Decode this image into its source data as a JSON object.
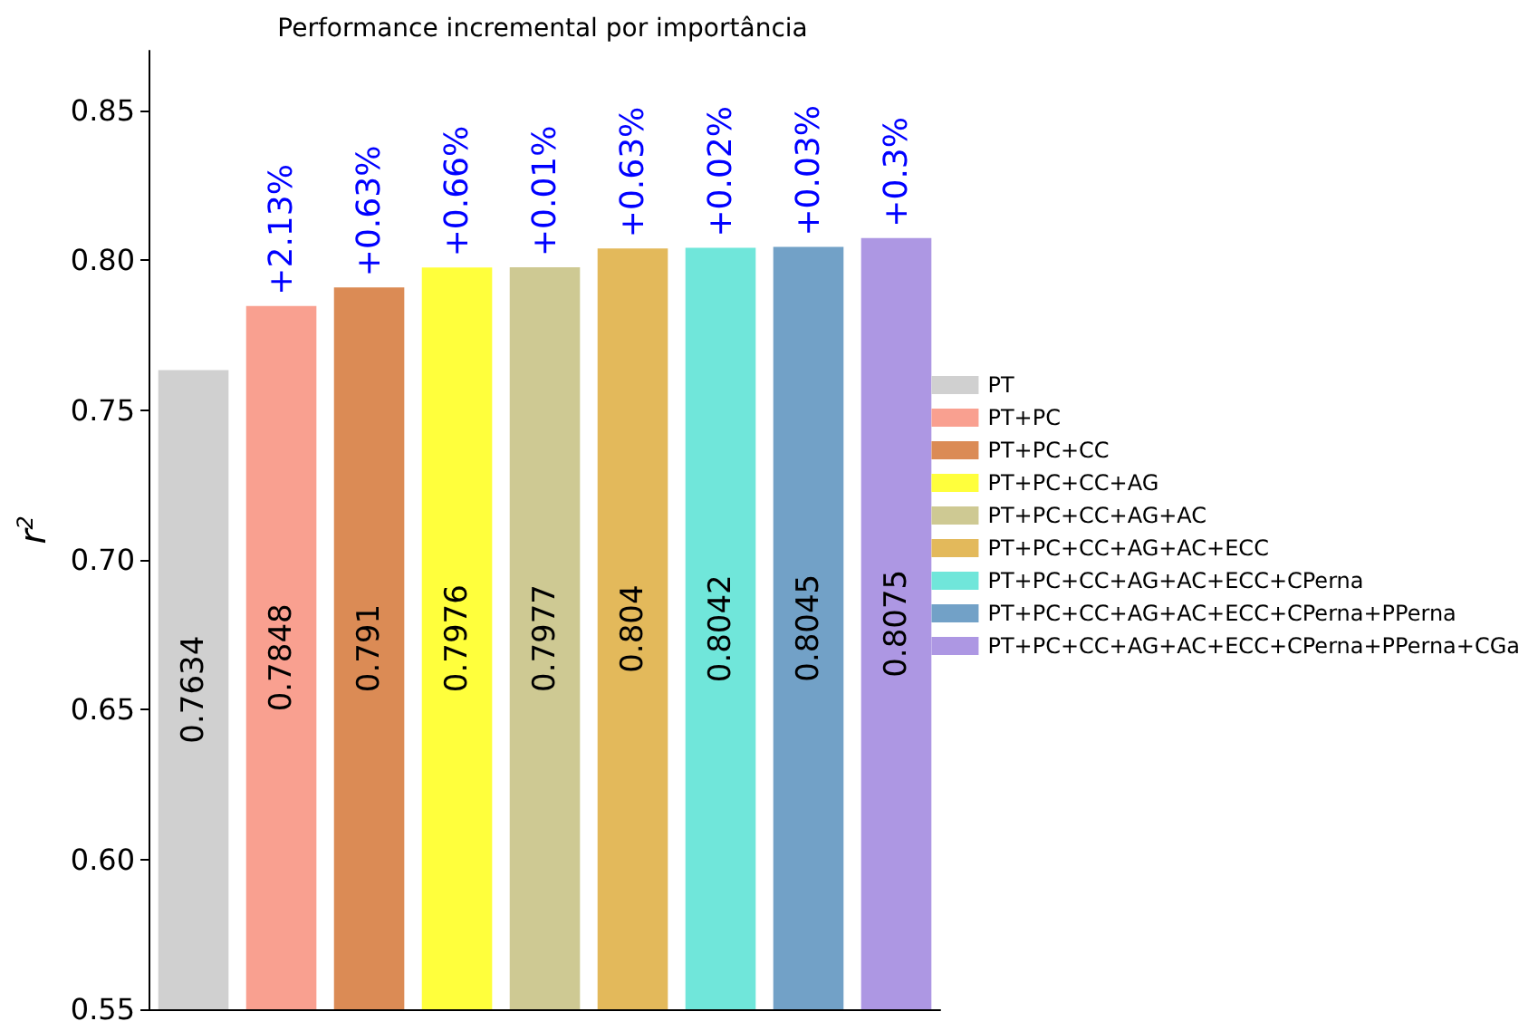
{
  "chart_data": {
    "type": "bar",
    "title": "Performance incremental por importância",
    "ylabel": "r$^{2}$",
    "categories": [
      null,
      null,
      null,
      null,
      null,
      null,
      null,
      null,
      null
    ],
    "series": [
      {
        "name": "PT",
        "color": "#d0d0d0",
        "values": [
          0.7634,
          null,
          null,
          null,
          null,
          null,
          null,
          null,
          null
        ]
      },
      {
        "name": "PT+PC",
        "color": "#f9a090",
        "values": [
          null,
          0.7848,
          null,
          null,
          null,
          null,
          null,
          null,
          null
        ]
      },
      {
        "name": "PT+PC+CC",
        "color": "#db8b55",
        "values": [
          null,
          null,
          0.791,
          null,
          null,
          null,
          null,
          null,
          null
        ]
      },
      {
        "name": "PT+PC+CC+AG",
        "color": "#ffff3c",
        "values": [
          null,
          null,
          null,
          0.7976,
          null,
          null,
          null,
          null,
          null
        ]
      },
      {
        "name": "PT+PC+CC+AG+AC",
        "color": "#cec993",
        "values": [
          null,
          null,
          null,
          null,
          0.7977,
          null,
          null,
          null,
          null
        ]
      },
      {
        "name": "PT+PC+CC+AG+AC+ECC",
        "color": "#e3b95b",
        "values": [
          null,
          null,
          null,
          null,
          null,
          0.804,
          null,
          null,
          null
        ]
      },
      {
        "name": "PT+PC+CC+AG+AC+ECC+CPerna",
        "color": "#70e6da",
        "values": [
          null,
          null,
          null,
          null,
          null,
          null,
          0.8042,
          null,
          null
        ]
      },
      {
        "name": "PT+PC+CC+AG+AC+ECC+CPerna+PPerna",
        "color": "#72a1c7",
        "values": [
          null,
          null,
          null,
          null,
          null,
          null,
          null,
          0.8045,
          null
        ]
      },
      {
        "name": "PT+PC+CC+AG+AC+ECC+CPerna+PPerna+CGa",
        "color": "#ad97e3",
        "values": [
          null,
          null,
          null,
          null,
          null,
          null,
          null,
          null,
          0.8075
        ]
      }
    ],
    "annotations": [
      {
        "text": "+2.13%",
        "y": 0.7848
      },
      {
        "text": "+0.63%",
        "y": 0.791
      },
      {
        "text": "+0.66%",
        "y": 0.7976
      },
      {
        "text": "+0.01%",
        "y": 0.7977
      },
      {
        "text": "+0.63%",
        "y": 0.804
      },
      {
        "text": "+0.02%",
        "y": 0.8042
      },
      {
        "text": "+0.03%",
        "y": 0.8045
      },
      {
        "text": "+0.3%",
        "y": 0.8075
      }
    ],
    "ylim": [
      0.55,
      0.87
    ],
    "yticks": [
      0.55,
      {
        "value": 0.6,
        "label": "0.60"
      },
      0.65,
      {
        "value": 0.7,
        "label": "0.70"
      },
      0.75,
      {
        "value": 0.8,
        "label": "0.80"
      },
      0.85
    ],
    "data_labels": true,
    "grid": false,
    "legend": "right"
  }
}
